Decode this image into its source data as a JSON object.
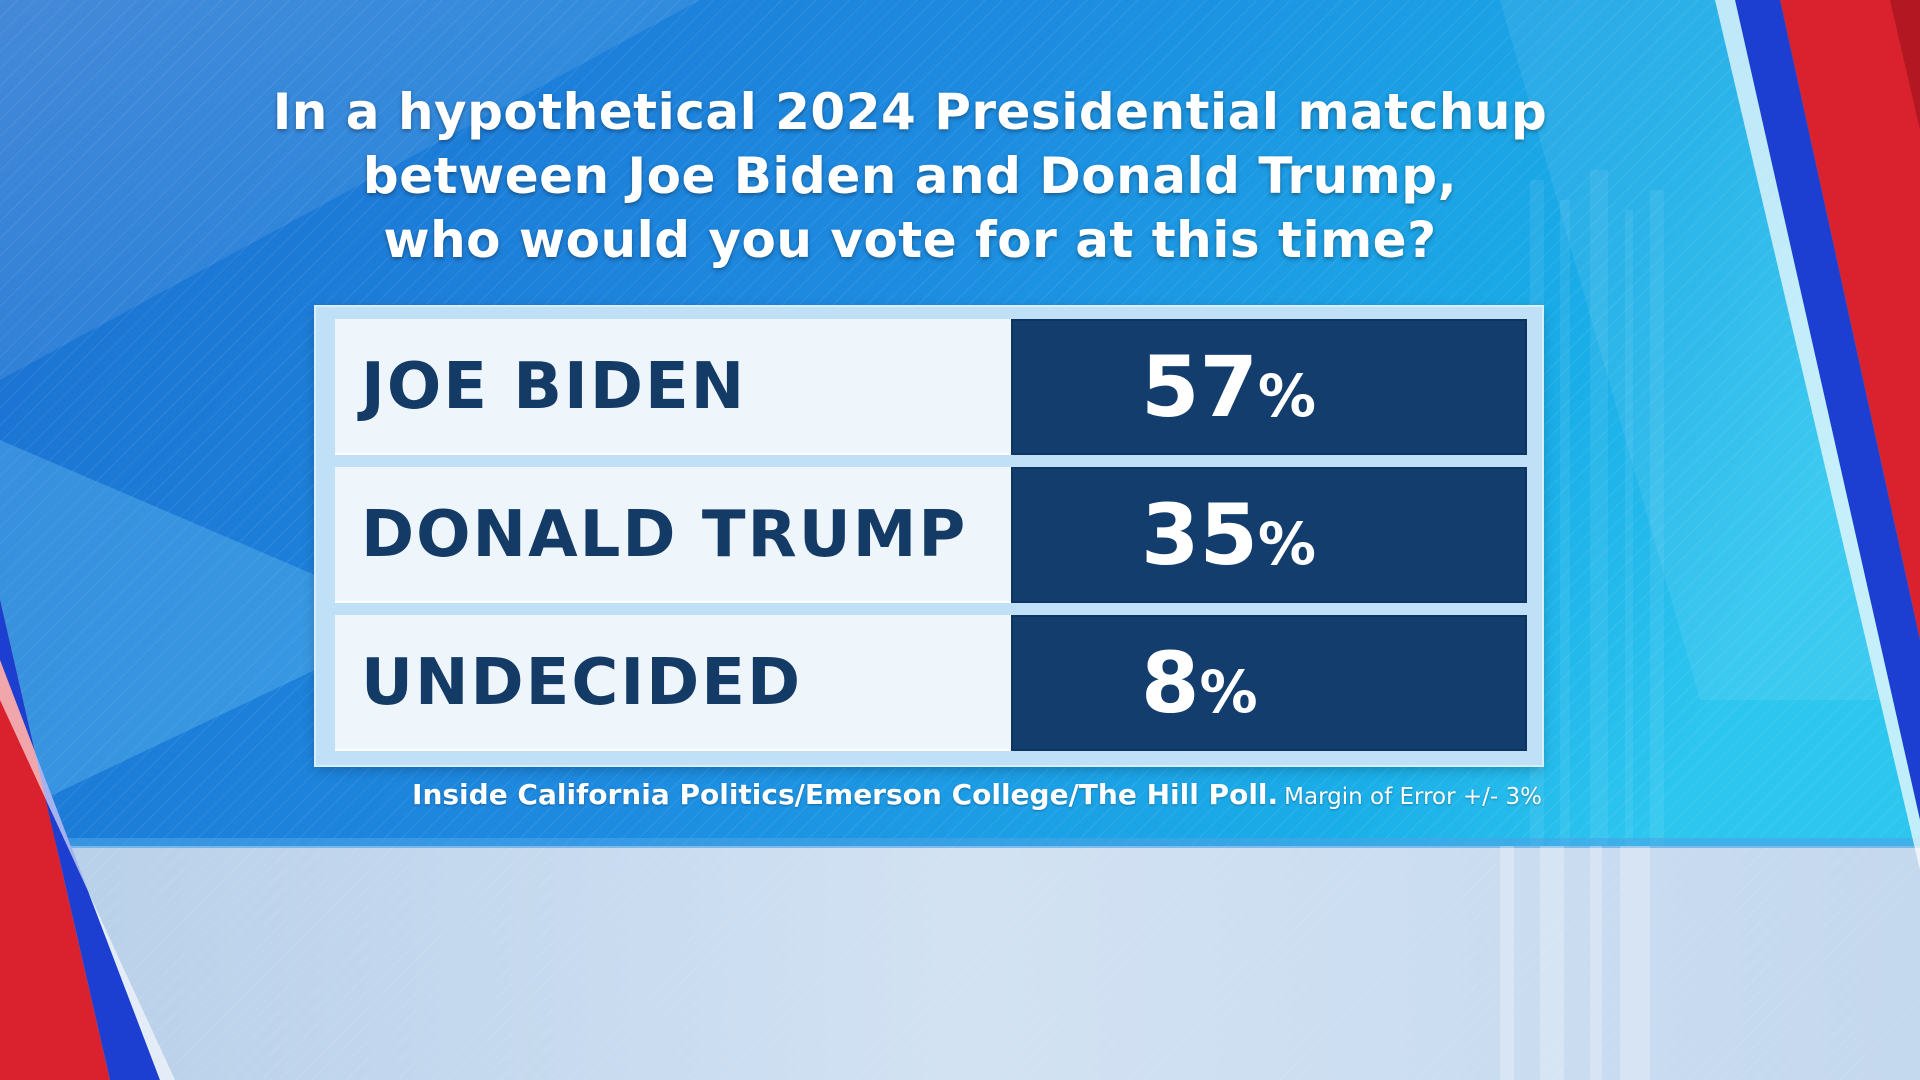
{
  "title_lines": [
    "In a hypothetical 2024 Presidential matchup",
    "between Joe Biden and Donald Trump,",
    "who would you vote for at this time?"
  ],
  "rows": [
    {
      "label": "JOE BIDEN",
      "value": "57",
      "unit": "%"
    },
    {
      "label": "DONALD TRUMP",
      "value": "35",
      "unit": "%"
    },
    {
      "label": "UNDECIDED",
      "value": "8",
      "unit": "%"
    }
  ],
  "source": {
    "main": "Inside California Politics/Emerson College/The Hill Poll.",
    "moe": "Margin of Error +/- 3%"
  },
  "colors": {
    "background_blue": "#1d7fd8",
    "background_light": "#c9dcef",
    "table_dark": "#123d6c",
    "table_light": "#eef5fb",
    "label_text": "#143a66",
    "stripe_red": "#d9222e",
    "stripe_blue": "#1c3fd1"
  },
  "chart_data": {
    "type": "table",
    "title": "In a hypothetical 2024 Presidential matchup between Joe Biden and Donald Trump, who would you vote for at this time?",
    "categories": [
      "JOE BIDEN",
      "DONALD TRUMP",
      "UNDECIDED"
    ],
    "values": [
      57,
      35,
      8
    ],
    "unit": "%"
  }
}
